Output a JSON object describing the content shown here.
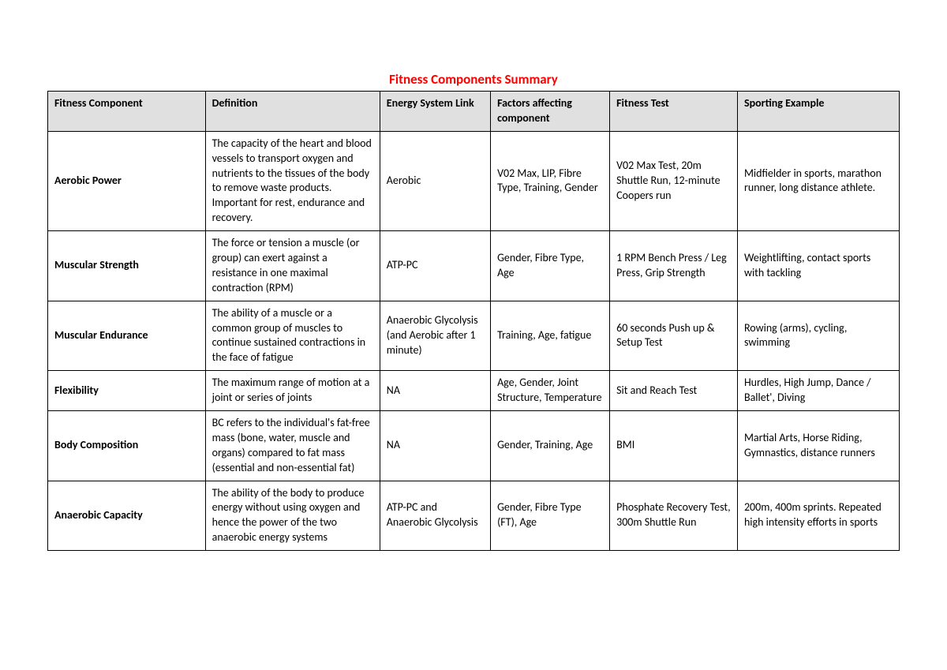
{
  "title": "Fitness Components Summary",
  "columns": [
    "Fitness Component",
    "Definition",
    "Energy System Link",
    "Factors affecting component",
    "Fitness Test",
    "Sporting Example"
  ],
  "rows": [
    {
      "component": "Aerobic Power",
      "definition": "The capacity of the heart and blood vessels to transport oxygen and nutrients to the tissues of the body to remove waste products. Important for rest, endurance and recovery.",
      "energy": "Aerobic",
      "factors": "V02 Max, LIP, Fibre Type, Training, Gender",
      "test": "V02 Max Test, 20m Shuttle Run, 12-minute Coopers run",
      "example": "Midfielder in sports, marathon runner, long distance athlete."
    },
    {
      "component": "Muscular Strength",
      "definition": "The force or tension a muscle (or group) can exert against a resistance in one maximal contraction (RPM)",
      "energy": "ATP-PC",
      "factors": "Gender, Fibre Type, Age",
      "test": "1 RPM Bench Press / Leg Press, Grip Strength",
      "example": "Weightlifting, contact sports with tackling"
    },
    {
      "component": "Muscular Endurance",
      "definition": "The ability of a muscle or a common group of muscles to continue sustained contractions in the face of fatigue",
      "energy": "Anaerobic Glycolysis (and Aerobic after 1 minute)",
      "factors": "Training, Age, fatigue",
      "test": "60 seconds Push up & Setup Test",
      "example": "Rowing (arms), cycling, swimming"
    },
    {
      "component": "Flexibility",
      "definition": "The maximum range of motion at a joint or series of joints",
      "energy": "NA",
      "factors": "Age, Gender, Joint Structure, Temperature",
      "test": "Sit and Reach Test",
      "example": "Hurdles, High Jump, Dance / Ballet', Diving"
    },
    {
      "component": "Body Composition",
      "definition": "BC refers to the individual's fat-free mass (bone, water, muscle and organs) compared to fat mass (essential and non-essential fat)",
      "energy": "NA",
      "factors": "Gender, Training, Age",
      "test": "BMI",
      "example": "Martial Arts, Horse Riding, Gymnastics, distance runners"
    },
    {
      "component": "Anaerobic Capacity",
      "definition": "The ability of the body to produce energy without using oxygen and hence the power of the two anaerobic energy systems",
      "energy": "ATP-PC and Anaerobic Glycolysis",
      "factors": "Gender, Fibre Type (FT), Age",
      "test": "Phosphate Recovery Test, 300m Shuttle Run",
      "example": "200m, 400m sprints. Repeated high intensity efforts in sports"
    }
  ],
  "colors": {
    "title": "#ff0000",
    "header_bg": "#e0e0e0",
    "border": "#000000",
    "background": "#ffffff"
  },
  "typography": {
    "title_fontsize": 17,
    "cell_fontsize": 14,
    "font_family": "Calibri"
  }
}
